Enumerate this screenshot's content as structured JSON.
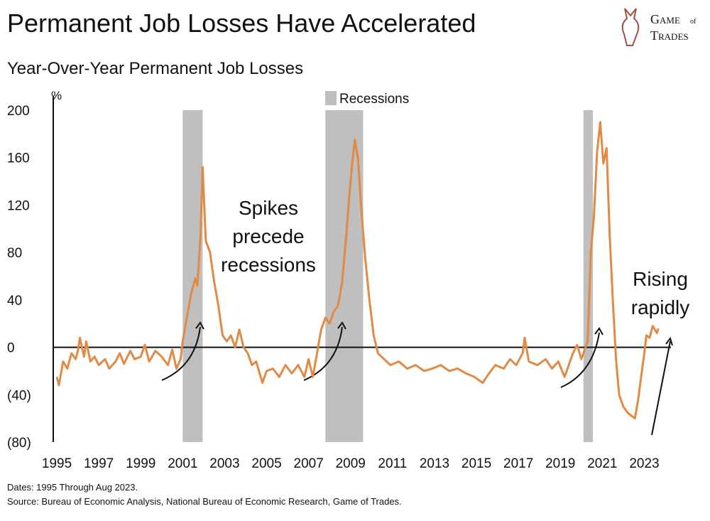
{
  "chart_data": {
    "type": "line",
    "title": "Permanent Job Losses Have Accelerated",
    "subtitle": "Year-Over-Year Permanent Job Losses",
    "y_unit": "%",
    "logo": {
      "top": "Game",
      "middle": "of",
      "bottom": "Trades"
    },
    "legend": "Recessions",
    "recession_color": "#bfbfbf",
    "recessions": [
      [
        2001.0,
        2001.95
      ],
      [
        2007.8,
        2009.6
      ],
      [
        2020.1,
        2020.55
      ]
    ],
    "annotations": [
      [
        "Spikes",
        "precede",
        "recessions"
      ],
      [
        "Rising",
        "rapidly"
      ]
    ],
    "notes": [
      "Dates: 1995 Through Aug 2023.",
      "Source: Bureau of Economic Analysis, National Bureau of Economic Research, Game of Trades."
    ],
    "xlim": [
      1994.83,
      2024.27
    ],
    "xticks": [
      1995,
      1997,
      1999,
      2001,
      2003,
      2005,
      2007,
      2009,
      2011,
      2013,
      2015,
      2017,
      2019,
      2021,
      2023
    ],
    "ylim": [
      -80,
      200
    ],
    "yticks": [
      {
        "value": -80,
        "label": "(80)"
      },
      {
        "value": -40,
        "label": "(40)"
      },
      0,
      40,
      80,
      120,
      160,
      200
    ],
    "series": [
      {
        "name": "Year-Over-Year Permanent Job Losses",
        "color": "#e08a45",
        "x": [
          1995.0,
          1995.1,
          1995.3,
          1995.5,
          1995.7,
          1995.9,
          1996.0,
          1996.1,
          1996.3,
          1996.4,
          1996.6,
          1996.8,
          1997.0,
          1997.3,
          1997.5,
          1997.8,
          1998.0,
          1998.2,
          1998.5,
          1998.7,
          1999.0,
          1999.2,
          1999.4,
          1999.7,
          2000.0,
          2000.3,
          2000.5,
          2000.7,
          2000.9,
          2001.0,
          2001.2,
          2001.4,
          2001.6,
          2001.7,
          2001.85,
          2001.95,
          2002.1,
          2002.3,
          2002.5,
          2002.7,
          2002.9,
          2003.1,
          2003.3,
          2003.5,
          2003.7,
          2003.9,
          2004.1,
          2004.3,
          2004.5,
          2004.8,
          2005.0,
          2005.3,
          2005.6,
          2005.9,
          2006.2,
          2006.5,
          2006.8,
          2007.0,
          2007.2,
          2007.4,
          2007.6,
          2007.8,
          2008.0,
          2008.2,
          2008.4,
          2008.6,
          2008.8,
          2008.95,
          2009.05,
          2009.2,
          2009.35,
          2009.5,
          2009.7,
          2009.9,
          2010.1,
          2010.3,
          2010.6,
          2010.9,
          2011.3,
          2011.7,
          2012.1,
          2012.5,
          2012.9,
          2013.3,
          2013.7,
          2014.1,
          2014.5,
          2014.9,
          2015.3,
          2015.6,
          2015.9,
          2016.3,
          2016.6,
          2016.9,
          2017.2,
          2017.3,
          2017.5,
          2017.9,
          2018.3,
          2018.6,
          2018.9,
          2019.2,
          2019.4,
          2019.6,
          2019.8,
          2020.0,
          2020.1,
          2020.3,
          2020.45,
          2020.6,
          2020.75,
          2020.9,
          2021.05,
          2021.2,
          2021.35,
          2021.5,
          2021.65,
          2021.8,
          2022.0,
          2022.2,
          2022.4,
          2022.55,
          2022.7,
          2022.85,
          2023.0,
          2023.1,
          2023.25,
          2023.4,
          2023.6,
          2023.67
        ],
        "values": [
          -25,
          -32,
          -12,
          -18,
          -5,
          -10,
          -3,
          8,
          -8,
          5,
          -12,
          -8,
          -15,
          -10,
          -18,
          -12,
          -5,
          -14,
          -3,
          -10,
          -8,
          2,
          -12,
          -3,
          -8,
          -15,
          -2,
          -18,
          -10,
          5,
          25,
          45,
          58,
          52,
          95,
          152,
          90,
          80,
          55,
          35,
          10,
          5,
          10,
          0,
          15,
          0,
          -5,
          -15,
          -12,
          -30,
          -20,
          -18,
          -25,
          -15,
          -22,
          -15,
          -25,
          -10,
          -25,
          -5,
          15,
          25,
          20,
          30,
          35,
          55,
          95,
          130,
          150,
          175,
          160,
          120,
          75,
          40,
          10,
          -5,
          -10,
          -15,
          -12,
          -18,
          -15,
          -20,
          -18,
          -15,
          -20,
          -18,
          -22,
          -25,
          -30,
          -22,
          -15,
          -18,
          -10,
          -15,
          -5,
          8,
          -12,
          -15,
          -10,
          -18,
          -12,
          -25,
          -15,
          -5,
          2,
          -10,
          -5,
          5,
          80,
          110,
          165,
          190,
          155,
          168,
          95,
          40,
          -10,
          -40,
          -50,
          -55,
          -58,
          -60,
          -45,
          -25,
          -5,
          10,
          8,
          18,
          12,
          16
        ]
      }
    ]
  }
}
